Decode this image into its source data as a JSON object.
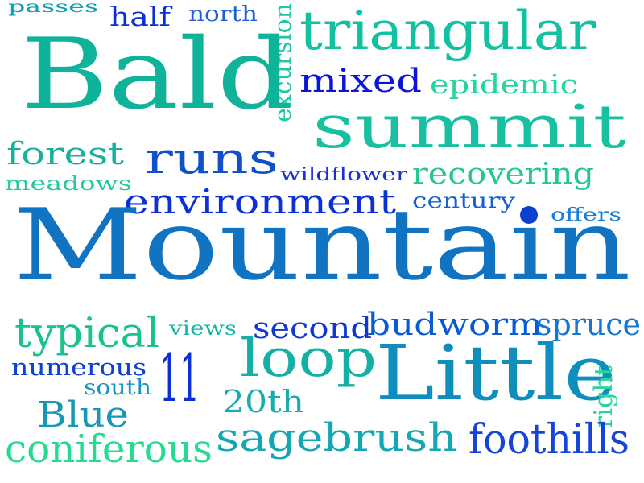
{
  "word_cloud": {
    "words": [
      {
        "id": "passes",
        "text": "passes",
        "color": "#0d9fb2"
      },
      {
        "id": "half",
        "text": "half",
        "color": "#0a2fd6"
      },
      {
        "id": "north",
        "text": "north",
        "color": "#1e5fd6"
      },
      {
        "id": "excursion",
        "text": "excursion",
        "color": "#21c6a2"
      },
      {
        "id": "triangular",
        "text": "triangular",
        "color": "#12c1a0"
      },
      {
        "id": "bald",
        "text": "Bald",
        "color": "#0fb39a"
      },
      {
        "id": "mixed",
        "text": "mixed",
        "color": "#0b14d8"
      },
      {
        "id": "epidemic",
        "text": "epidemic",
        "color": "#26d49f"
      },
      {
        "id": "summit",
        "text": "summit",
        "color": "#16c0a0"
      },
      {
        "id": "forest",
        "text": "forest",
        "color": "#17b09a"
      },
      {
        "id": "runs",
        "text": "runs",
        "color": "#1150cc"
      },
      {
        "id": "wildflower",
        "text": "wildflower",
        "color": "#1a2fd0"
      },
      {
        "id": "recovering",
        "text": "recovering",
        "color": "#23c696"
      },
      {
        "id": "meadows",
        "text": "meadows",
        "color": "#27c99c"
      },
      {
        "id": "environment",
        "text": "environment",
        "color": "#0b2fd8"
      },
      {
        "id": "century",
        "text": "century",
        "color": "#1661cf"
      },
      {
        "id": "offers",
        "text": "offers",
        "color": "#1a7cd3"
      },
      {
        "id": "mountain",
        "text": "Mountain",
        "color": "#1174c2"
      },
      {
        "id": "typical",
        "text": "typical",
        "color": "#19c190"
      },
      {
        "id": "views",
        "text": "views",
        "color": "#17b5a5"
      },
      {
        "id": "second",
        "text": "second",
        "color": "#1236d3"
      },
      {
        "id": "budworm",
        "text": "budworm",
        "color": "#0a5ad6"
      },
      {
        "id": "spruce",
        "text": "spruce",
        "color": "#1476cf"
      },
      {
        "id": "numerous",
        "text": "numerous",
        "color": "#0d40d4"
      },
      {
        "id": "11",
        "text": "11",
        "color": "#0a2fd8"
      },
      {
        "id": "loop",
        "text": "loop",
        "color": "#15b0a5"
      },
      {
        "id": "little",
        "text": "Little",
        "color": "#0f8ebd"
      },
      {
        "id": "south",
        "text": "south",
        "color": "#1594c2"
      },
      {
        "id": "right",
        "text": "right",
        "color": "#25d899"
      },
      {
        "id": "20th",
        "text": "20th",
        "color": "#18acb0"
      },
      {
        "id": "blue",
        "text": "Blue",
        "color": "#1598b8"
      },
      {
        "id": "sagebrush",
        "text": "sagebrush",
        "color": "#13a6b3"
      },
      {
        "id": "coniferous",
        "text": "coniferous",
        "color": "#26da8f"
      },
      {
        "id": "foothills",
        "text": "foothills",
        "color": "#1644d6"
      }
    ]
  }
}
